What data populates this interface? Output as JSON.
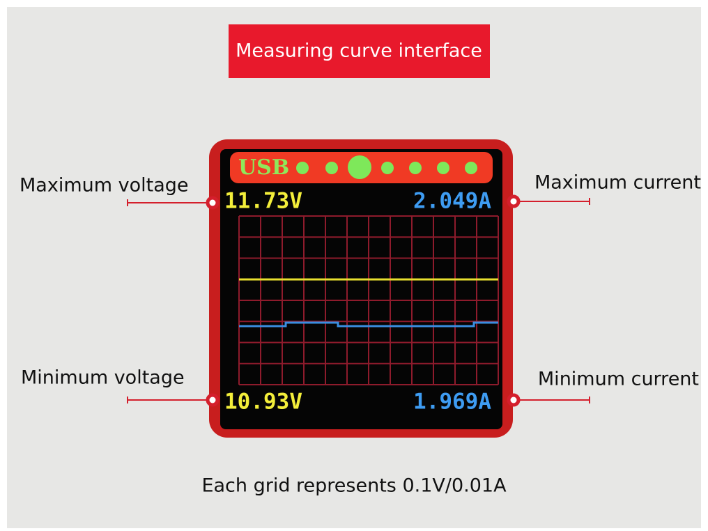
{
  "header": {
    "title": "Measuring curve interface"
  },
  "callouts": {
    "max_voltage": "Maximum voltage",
    "max_current": "Maximum current",
    "min_voltage": "Minimum voltage",
    "min_current": "Minimum current"
  },
  "screen": {
    "mode": "USB",
    "max_voltage": "11.73V",
    "max_current": "2.049A",
    "min_voltage": "10.93V",
    "min_current": "1.969A"
  },
  "footer": {
    "note": "Each grid represents 0.1V/0.01A"
  }
}
